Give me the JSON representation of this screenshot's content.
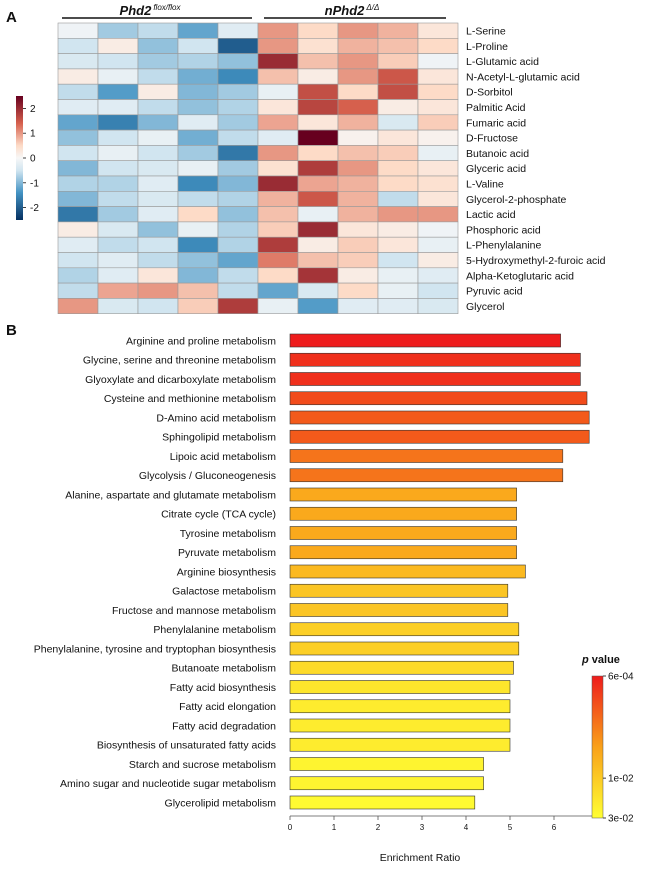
{
  "chart_data": [
    {
      "type": "heatmap",
      "panel_label": "A",
      "groups": [
        {
          "name": "Phd2",
          "superscript": "flox/flox"
        },
        {
          "name": "nPhd2",
          "superscript": "Δ/Δ"
        }
      ],
      "rows": [
        "L-Serine",
        "L-Proline",
        "L-Glutamic acid",
        "N-Acetyl-L-glutamic acid",
        "D-Sorbitol",
        "Palmitic Acid",
        "Fumaric acid",
        "D-Fructose",
        "Butanoic acid",
        "Glyceric acid",
        "L-Valine",
        "Glycerol-2-phosphate",
        "Lactic acid",
        "Phosphoric acid",
        "L-Phenylalanine",
        "5-Hydroxymethyl-2-furoic acid",
        "Alpha-Ketoglutaric acid",
        "Pyruvic acid",
        "Glycerol"
      ],
      "values": [
        [
          -0.1,
          -0.8,
          -0.6,
          -1.2,
          -0.3,
          1.0,
          0.5,
          1.0,
          0.8,
          0.3
        ],
        [
          -0.5,
          0.2,
          -0.9,
          -0.5,
          -2.0,
          1.0,
          0.4,
          0.8,
          0.7,
          0.5
        ],
        [
          -0.4,
          -0.5,
          -0.8,
          -0.7,
          -0.9,
          2.0,
          0.7,
          1.0,
          0.6,
          -0.1
        ],
        [
          0.2,
          -0.2,
          -0.6,
          -1.1,
          -1.5,
          0.7,
          0.2,
          1.0,
          1.5,
          0.3
        ],
        [
          -0.6,
          -1.3,
          0.2,
          -1.0,
          -0.8,
          -0.2,
          1.6,
          0.5,
          1.6,
          0.5
        ],
        [
          -0.3,
          -0.3,
          -0.6,
          -0.9,
          -0.7,
          0.3,
          1.7,
          1.4,
          0.2,
          0.3
        ],
        [
          -1.2,
          -1.6,
          -1.0,
          -0.3,
          -0.8,
          0.9,
          0.3,
          0.8,
          -0.4,
          0.6
        ],
        [
          -0.9,
          -0.5,
          -0.2,
          -1.1,
          -0.6,
          -0.3,
          2.5,
          0.1,
          0.3,
          0.1
        ],
        [
          -0.5,
          -0.2,
          -0.5,
          -0.8,
          -1.7,
          1.0,
          0.5,
          0.7,
          0.6,
          -0.2
        ],
        [
          -1.0,
          -0.5,
          -0.4,
          -0.2,
          -0.8,
          0.4,
          1.8,
          1.0,
          0.5,
          0.3
        ],
        [
          -0.7,
          -0.7,
          -0.3,
          -1.5,
          -1.0,
          2.0,
          0.9,
          0.8,
          0.5,
          0.4
        ],
        [
          -1.0,
          -0.6,
          -0.4,
          -0.6,
          -0.7,
          0.8,
          1.5,
          0.8,
          -0.6,
          0.3
        ],
        [
          -1.7,
          -0.8,
          -0.3,
          0.5,
          -0.9,
          0.7,
          -0.2,
          0.8,
          1.0,
          1.0
        ],
        [
          0.2,
          -0.4,
          -0.9,
          -0.2,
          -0.7,
          0.6,
          2.0,
          0.3,
          0.2,
          -0.1
        ],
        [
          -0.3,
          -0.6,
          -0.5,
          -1.5,
          -0.7,
          1.8,
          0.2,
          0.6,
          0.3,
          -0.2
        ],
        [
          -0.5,
          -0.3,
          -0.6,
          -0.9,
          -1.2,
          1.2,
          0.7,
          0.6,
          -0.5,
          0.2
        ],
        [
          -0.7,
          -0.3,
          0.3,
          -1.0,
          -0.6,
          0.5,
          1.9,
          0.2,
          -0.2,
          -0.3
        ],
        [
          -0.6,
          0.9,
          1.0,
          0.7,
          -0.6,
          -1.2,
          -0.4,
          0.5,
          -0.2,
          -0.5
        ],
        [
          1.0,
          -0.4,
          -0.5,
          0.6,
          1.8,
          -0.2,
          -1.3,
          -0.3,
          -0.3,
          -0.4
        ]
      ],
      "colorbar": {
        "ticks": [
          2,
          1,
          0,
          -1,
          -2
        ],
        "tick_labels": [
          "2",
          "1",
          "0",
          "-1",
          "-2"
        ],
        "range": [
          -2.5,
          2.5
        ]
      }
    },
    {
      "type": "bar",
      "orientation": "horizontal",
      "panel_label": "B",
      "categories": [
        "Arginine and proline metabolism",
        "Glycine, serine and threonine metabolism",
        "Glyoxylate and dicarboxylate metabolism",
        "Cysteine and methionine metabolism",
        "D-Amino acid metabolism",
        "Sphingolipid metabolism",
        "Lipoic acid metabolism",
        "Glycolysis / Gluconeogenesis",
        "Alanine, aspartate and glutamate metabolism",
        "Citrate cycle (TCA cycle)",
        "Tyrosine metabolism",
        "Pyruvate metabolism",
        "Arginine biosynthesis",
        "Galactose metabolism",
        "Fructose and mannose metabolism",
        "Phenylalanine metabolism",
        "Phenylalanine, tyrosine and tryptophan biosynthesis",
        "Butanoate metabolism",
        "Fatty acid biosynthesis",
        "Fatty acid elongation",
        "Fatty acid degradation",
        "Biosynthesis of unsaturated fatty acids",
        "Starch and sucrose metabolism",
        "Amino sugar and nucleotide sugar metabolism",
        "Glycerolipid metabolism"
      ],
      "values": [
        6.15,
        6.6,
        6.6,
        6.75,
        6.8,
        6.8,
        6.2,
        6.2,
        5.15,
        5.15,
        5.15,
        5.15,
        5.35,
        4.95,
        4.95,
        5.2,
        5.2,
        5.08,
        5.0,
        5.0,
        5.0,
        5.0,
        4.4,
        4.4,
        4.2
      ],
      "p_values": [
        0.0006,
        0.0008,
        0.0008,
        0.0012,
        0.0015,
        0.0015,
        0.0022,
        0.0022,
        0.005,
        0.005,
        0.005,
        0.005,
        0.007,
        0.009,
        0.009,
        0.011,
        0.011,
        0.014,
        0.018,
        0.02,
        0.02,
        0.02,
        0.024,
        0.024,
        0.027
      ],
      "xlabel": "Enrichment Ratio",
      "xlim": [
        0,
        7
      ],
      "xticks": [
        0,
        1,
        2,
        3,
        4,
        5,
        6
      ],
      "legend": {
        "title_prefix": "p",
        "title_suffix": " value",
        "tick_labels": [
          "6e-04",
          "1e-02",
          "3e-02"
        ],
        "range": [
          0.0006,
          0.03
        ]
      }
    }
  ]
}
